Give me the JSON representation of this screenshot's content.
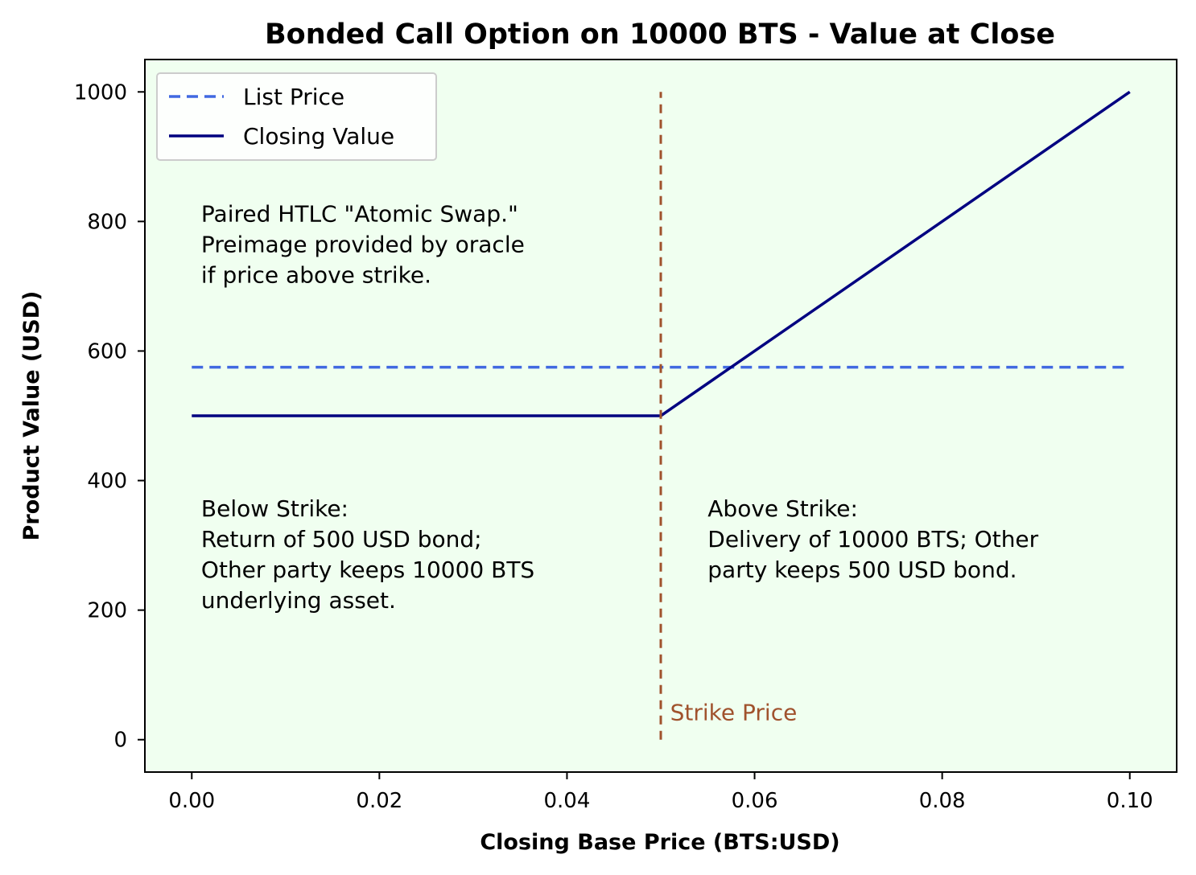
{
  "chart_data": {
    "type": "line",
    "title": "Bonded Call Option on 10000 BTS - Value at Close",
    "xlabel": "Closing Base Price (BTS:USD)",
    "ylabel": "Product Value (USD)",
    "xlim": [
      -0.005,
      0.105
    ],
    "ylim": [
      -50,
      1050
    ],
    "grid": false,
    "legend_position": "top-left",
    "background_color": "#f0fff0",
    "x_ticks": [
      0.0,
      0.02,
      0.04,
      0.06,
      0.08,
      0.1
    ],
    "x_tick_labels": [
      "0.00",
      "0.02",
      "0.04",
      "0.06",
      "0.08",
      "0.10"
    ],
    "y_ticks": [
      0,
      200,
      400,
      600,
      800,
      1000
    ],
    "y_tick_labels": [
      "0",
      "200",
      "400",
      "600",
      "800",
      "1000"
    ],
    "series": [
      {
        "name": "List Price",
        "style": "dashed",
        "color": "#4169e1",
        "x": [
          0.0,
          0.1
        ],
        "y": [
          575,
          575
        ]
      },
      {
        "name": "Closing Value",
        "style": "solid",
        "color": "#000080",
        "x": [
          0.0,
          0.05,
          0.1
        ],
        "y": [
          500,
          500,
          1000
        ]
      }
    ],
    "strike": {
      "x": 0.05,
      "y_range": [
        0,
        1000
      ],
      "label": "Strike Price",
      "color": "#a0522d",
      "label_x": 0.051,
      "label_y": 30
    },
    "annotations": [
      {
        "lines": [
          "Paired HTLC \"Atomic Swap.\"",
          "Preimage provided by oracle",
          "if price above strike."
        ],
        "x": 0.001,
        "y": 800
      },
      {
        "lines": [
          "Below Strike:",
          "Return of 500 USD bond;",
          "Other party keeps 10000 BTS",
          "underlying asset."
        ],
        "x": 0.001,
        "y": 345
      },
      {
        "lines": [
          "Above Strike:",
          "Delivery of 10000 BTS; Other",
          "party keeps 500 USD bond."
        ],
        "x": 0.055,
        "y": 345
      }
    ]
  }
}
